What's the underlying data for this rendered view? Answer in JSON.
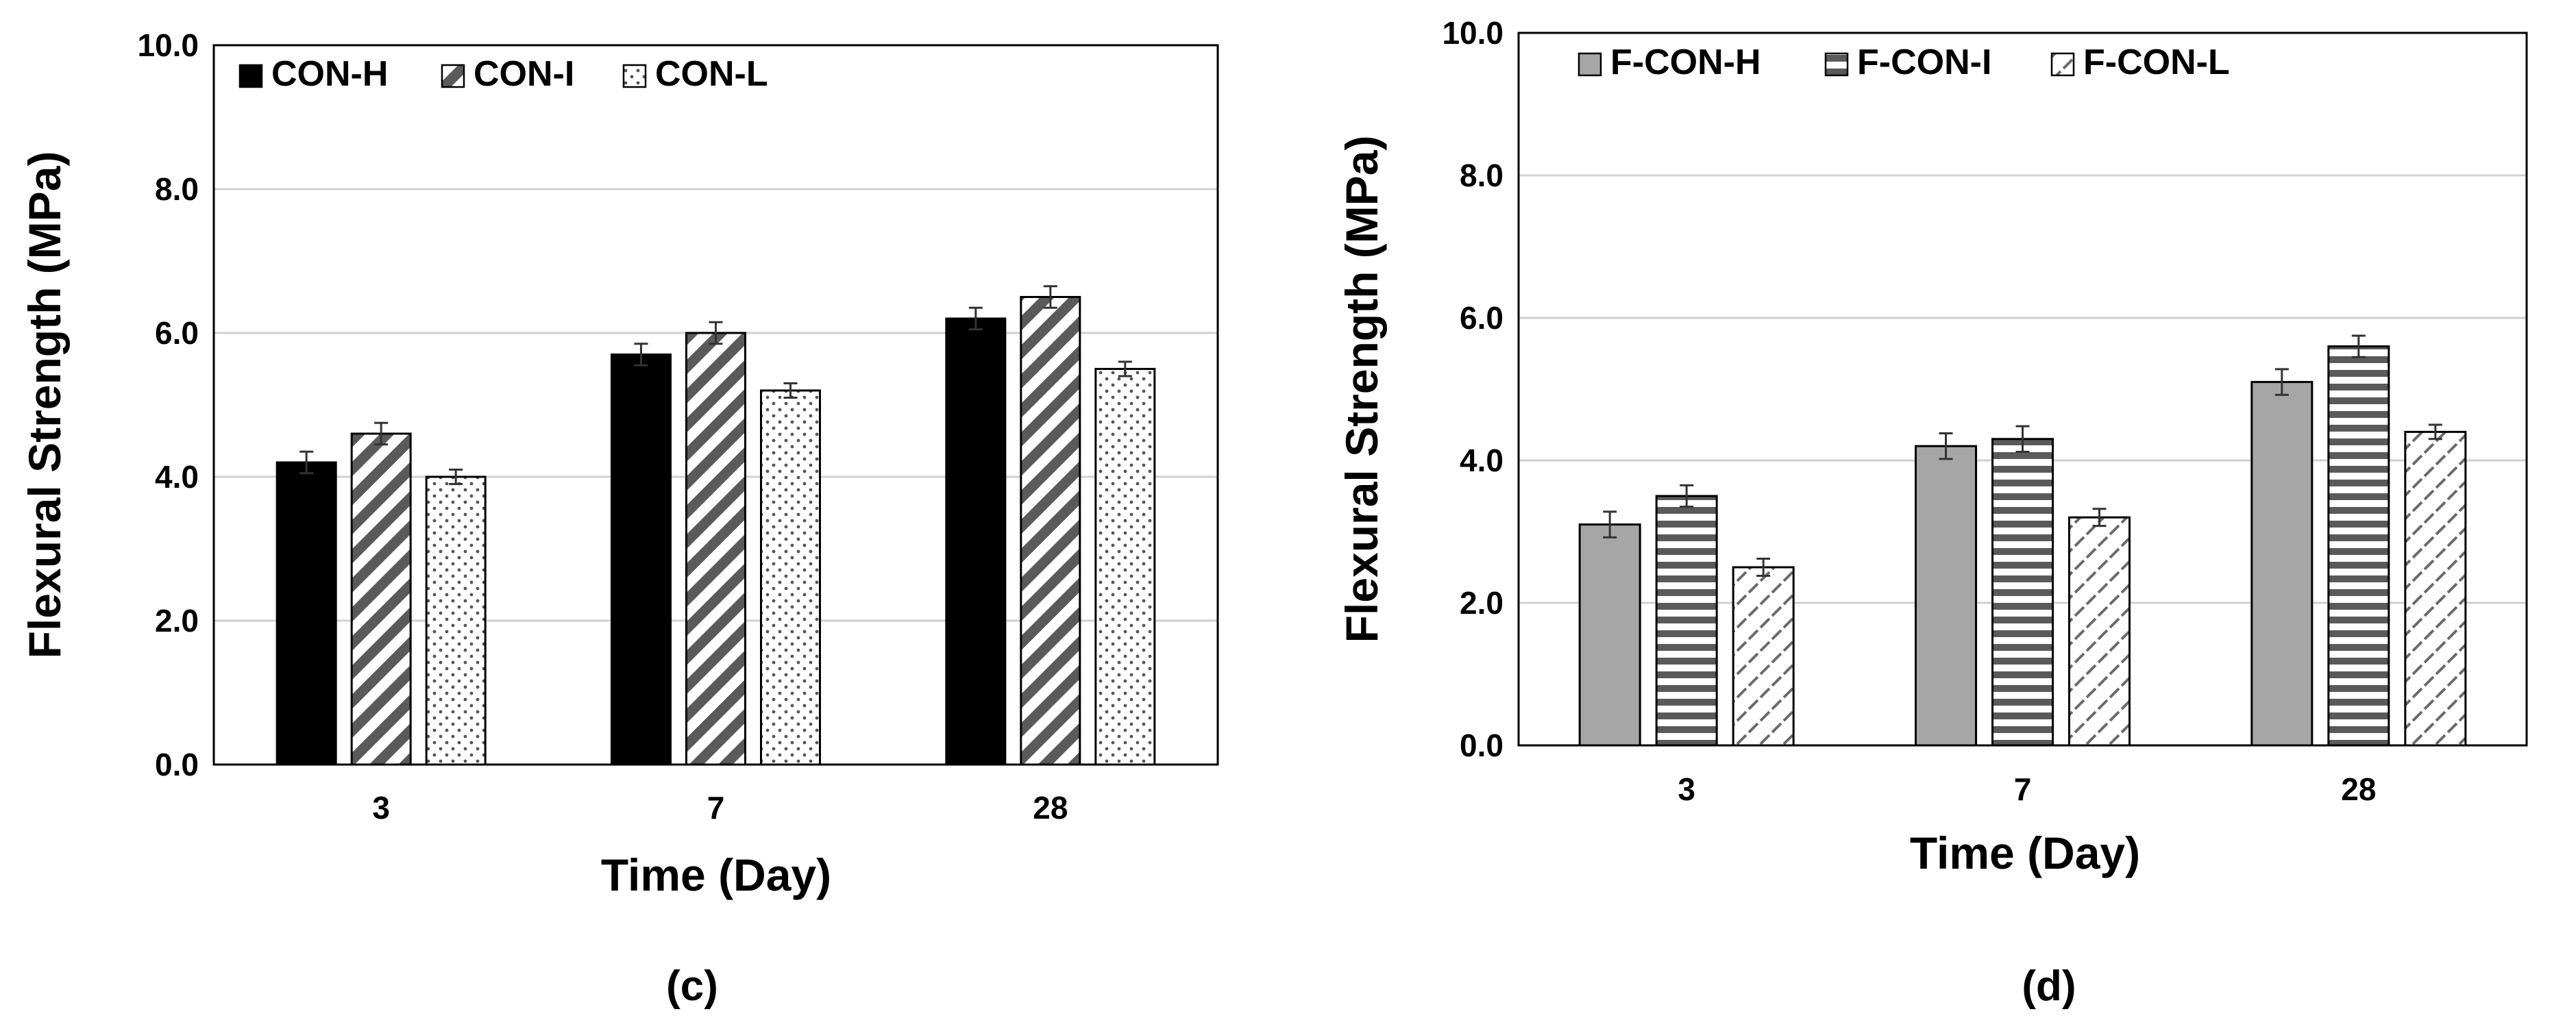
{
  "chart_data": [
    {
      "type": "bar",
      "panel_label": "(c)",
      "title": "",
      "xlabel": "Time (Day)",
      "ylabel": "Flexural Strength (MPa)",
      "categories": [
        "3",
        "7",
        "28"
      ],
      "ylim": [
        0,
        10
      ],
      "yticks": [
        "0.0",
        "2.0",
        "4.0",
        "6.0",
        "8.0",
        "10.0"
      ],
      "grid": true,
      "legend_position": "top-left",
      "series": [
        {
          "name": "CON-H",
          "values": [
            4.2,
            5.7,
            6.2
          ],
          "errors": [
            0.15,
            0.15,
            0.15
          ],
          "pattern": "solid",
          "color": "#000000"
        },
        {
          "name": "CON-I",
          "values": [
            4.6,
            6.0,
            6.5
          ],
          "errors": [
            0.15,
            0.15,
            0.15
          ],
          "pattern": "diagonal",
          "color": "#5a5a5a"
        },
        {
          "name": "CON-L",
          "values": [
            4.0,
            5.2,
            5.5
          ],
          "errors": [
            0.1,
            0.1,
            0.1
          ],
          "pattern": "dots",
          "color": "#5a5a5a"
        }
      ]
    },
    {
      "type": "bar",
      "panel_label": "(d)",
      "title": "",
      "xlabel": "Time (Day)",
      "ylabel": "Flexural Strength (MPa)",
      "categories": [
        "3",
        "7",
        "28"
      ],
      "ylim": [
        0,
        10
      ],
      "yticks": [
        "0.0",
        "2.0",
        "4.0",
        "6.0",
        "8.0",
        "10.0"
      ],
      "grid": true,
      "legend_position": "top-left",
      "series": [
        {
          "name": "F-CON-H",
          "values": [
            3.1,
            4.2,
            5.1
          ],
          "errors": [
            0.18,
            0.18,
            0.18
          ],
          "pattern": "solid-gray",
          "color": "#a6a6a6"
        },
        {
          "name": "F-CON-I",
          "values": [
            3.5,
            4.3,
            5.6
          ],
          "errors": [
            0.15,
            0.18,
            0.15
          ],
          "pattern": "horizontal",
          "color": "#5a5a5a"
        },
        {
          "name": "F-CON-L",
          "values": [
            2.5,
            3.2,
            4.4
          ],
          "errors": [
            0.12,
            0.12,
            0.1
          ],
          "pattern": "dashed-diagonal",
          "color": "#5a5a5a"
        }
      ]
    }
  ]
}
